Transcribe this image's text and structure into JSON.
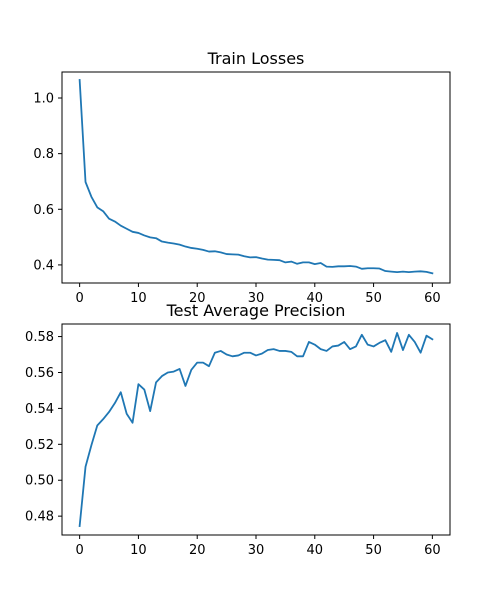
{
  "chart_data": [
    {
      "type": "line",
      "title": "Train Losses",
      "xlabel": "",
      "ylabel": "",
      "xlim": [
        -3,
        63
      ],
      "ylim": [
        0.335,
        1.0935
      ],
      "xticks": [
        0,
        10,
        20,
        30,
        40,
        50,
        60
      ],
      "xtick_labels": [
        "0",
        "10",
        "20",
        "30",
        "40",
        "50",
        "60"
      ],
      "yticks": [
        0.4,
        0.6,
        0.8,
        1.0
      ],
      "ytick_labels": [
        "0.4",
        "0.6",
        "0.8",
        "1.0"
      ],
      "grid": false,
      "color": "#1f77b4",
      "series": [
        {
          "x": [
            0,
            1,
            2,
            3,
            4,
            5,
            6,
            7,
            8,
            9,
            10,
            11,
            12,
            13,
            14,
            15,
            16,
            17,
            18,
            19,
            20,
            21,
            22,
            23,
            24,
            25,
            26,
            27,
            28,
            29,
            30,
            31,
            32,
            33,
            34,
            35,
            36,
            37,
            38,
            39,
            40,
            41,
            42,
            43,
            44,
            45,
            46,
            47,
            48,
            49,
            50,
            51,
            52,
            53,
            54,
            55,
            56,
            57,
            58,
            59,
            60
          ],
          "values": [
            1.065,
            0.698,
            0.645,
            0.607,
            0.593,
            0.566,
            0.556,
            0.541,
            0.53,
            0.519,
            0.515,
            0.506,
            0.499,
            0.496,
            0.484,
            0.48,
            0.477,
            0.473,
            0.466,
            0.461,
            0.458,
            0.454,
            0.448,
            0.449,
            0.445,
            0.439,
            0.438,
            0.437,
            0.431,
            0.427,
            0.428,
            0.423,
            0.419,
            0.418,
            0.417,
            0.409,
            0.412,
            0.404,
            0.409,
            0.409,
            0.403,
            0.407,
            0.394,
            0.393,
            0.395,
            0.395,
            0.396,
            0.394,
            0.386,
            0.388,
            0.388,
            0.387,
            0.378,
            0.376,
            0.374,
            0.376,
            0.374,
            0.376,
            0.377,
            0.375,
            0.37
          ]
        }
      ]
    },
    {
      "type": "line",
      "title": "Test Average Precision",
      "xlabel": "",
      "ylabel": "",
      "xlim": [
        -3,
        63
      ],
      "ylim": [
        0.4695,
        0.587
      ],
      "xticks": [
        0,
        10,
        20,
        30,
        40,
        50,
        60
      ],
      "xtick_labels": [
        "0",
        "10",
        "20",
        "30",
        "40",
        "50",
        "60"
      ],
      "yticks": [
        0.48,
        0.5,
        0.52,
        0.54,
        0.56,
        0.58
      ],
      "ytick_labels": [
        "0.48",
        "0.50",
        "0.52",
        "0.54",
        "0.56",
        "0.58"
      ],
      "grid": false,
      "color": "#1f77b4",
      "series": [
        {
          "x": [
            0,
            1,
            2,
            3,
            4,
            5,
            6,
            7,
            8,
            9,
            10,
            11,
            12,
            13,
            14,
            15,
            16,
            17,
            18,
            19,
            20,
            21,
            22,
            23,
            24,
            25,
            26,
            27,
            28,
            29,
            30,
            31,
            32,
            33,
            34,
            35,
            36,
            37,
            38,
            39,
            40,
            41,
            42,
            43,
            44,
            45,
            46,
            47,
            48,
            49,
            50,
            51,
            52,
            53,
            54,
            55,
            56,
            57,
            58,
            59,
            60
          ],
          "values": [
            0.4745,
            0.5075,
            0.5195,
            0.5305,
            0.534,
            0.538,
            0.543,
            0.549,
            0.537,
            0.532,
            0.5535,
            0.5505,
            0.5385,
            0.5545,
            0.558,
            0.56,
            0.5605,
            0.562,
            0.5525,
            0.5615,
            0.5655,
            0.5655,
            0.5635,
            0.571,
            0.572,
            0.57,
            0.569,
            0.5695,
            0.571,
            0.571,
            0.5695,
            0.5705,
            0.5725,
            0.573,
            0.572,
            0.572,
            0.5715,
            0.569,
            0.569,
            0.577,
            0.5755,
            0.573,
            0.572,
            0.5745,
            0.575,
            0.577,
            0.573,
            0.5745,
            0.581,
            0.5755,
            0.5745,
            0.5765,
            0.578,
            0.5715,
            0.582,
            0.5725,
            0.581,
            0.577,
            0.571,
            0.5805,
            0.5785
          ]
        }
      ]
    }
  ]
}
